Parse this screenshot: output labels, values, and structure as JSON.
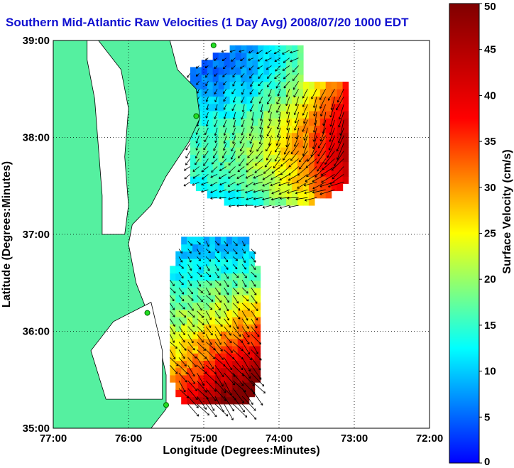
{
  "chart_data": {
    "type": "heatmap",
    "title": "Southern Mid-Atlantic Raw Velocities (1 Day Avg) 2008/07/20 1000 EDT",
    "xlabel": "Longitude (Degrees:Minutes)",
    "ylabel": "Latitude (Degrees:Minutes)",
    "colorbar_label": "Surface Velocity (cm/s)",
    "xlim": [
      -77,
      -72
    ],
    "ylim": [
      35,
      39
    ],
    "x_ticks": [
      {
        "value": -77,
        "label": "77:00"
      },
      {
        "value": -76,
        "label": "76:00"
      },
      {
        "value": -75,
        "label": "75:00"
      },
      {
        "value": -74,
        "label": "74:00"
      },
      {
        "value": -73,
        "label": "73:00"
      },
      {
        "value": -72,
        "label": "72:00"
      }
    ],
    "y_ticks": [
      {
        "value": 35,
        "label": "35:00"
      },
      {
        "value": 36,
        "label": "36:00"
      },
      {
        "value": 37,
        "label": "37:00"
      },
      {
        "value": 38,
        "label": "38:00"
      },
      {
        "value": 39,
        "label": "39:00"
      }
    ],
    "colorbar": {
      "min": 0,
      "max": 50,
      "ticks": [
        0,
        5,
        10,
        15,
        20,
        25,
        30,
        35,
        40,
        45,
        50
      ],
      "colormap": [
        "#0000ff",
        "#00ffff",
        "#ffff00",
        "#ff0000",
        "#800000"
      ]
    },
    "grid": true,
    "land_color": "#55f0a0",
    "stations": [
      {
        "lon": -74.87,
        "lat": 38.95
      },
      {
        "lon": -75.1,
        "lat": 38.22
      },
      {
        "lon": -75.75,
        "lat": 36.19
      },
      {
        "lon": -75.5,
        "lat": 35.24
      }
    ],
    "regions": [
      {
        "name": "",
        "lon": [
          -75.18,
          -73.1
        ],
        "lat": [
          37.3,
          38.93
        ]
      },
      {
        "name": "",
        "lon": [
          -75.45,
          -74.25
        ],
        "lat": [
          35.25,
          36.95
        ]
      }
    ]
  }
}
